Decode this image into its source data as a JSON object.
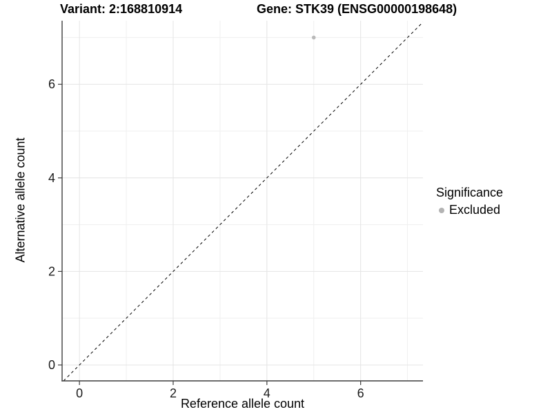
{
  "header": {
    "title_left": "Variant: 2:168810914",
    "title_right": "Gene: STK39 (ENSG00000198648)"
  },
  "chart_data": {
    "type": "scatter",
    "title": "Variant: 2:168810914   Gene: STK39 (ENSG00000198648)",
    "xlabel": "Reference allele count",
    "ylabel": "Alternative allele count",
    "xlim": [
      -0.37,
      7.33
    ],
    "ylim": [
      -0.34,
      7.36
    ],
    "x_ticks": [
      0,
      2,
      4,
      6
    ],
    "y_ticks": [
      0,
      2,
      4,
      6
    ],
    "x_minor_gridlines": [
      1,
      3,
      5,
      7
    ],
    "y_minor_gridlines": [
      1,
      3,
      5,
      7
    ],
    "grid": true,
    "points": [
      {
        "x": 5,
        "y": 7,
        "significance": "Excluded"
      }
    ],
    "reference_line": {
      "type": "identity",
      "slope": 1,
      "intercept": 0,
      "style": "dashed"
    },
    "legend": {
      "title": "Significance",
      "position": "right",
      "entries": [
        {
          "label": "Excluded",
          "color": "#b3b3b3"
        }
      ]
    },
    "colors": {
      "point": "#b9b9b9",
      "grid_major": "#e4e4e4",
      "grid_minor": "#efefef",
      "axis": "#3c3c3c",
      "reference_line": "#000000",
      "tick_label": "#1a1a1a",
      "background": "#ffffff"
    }
  }
}
